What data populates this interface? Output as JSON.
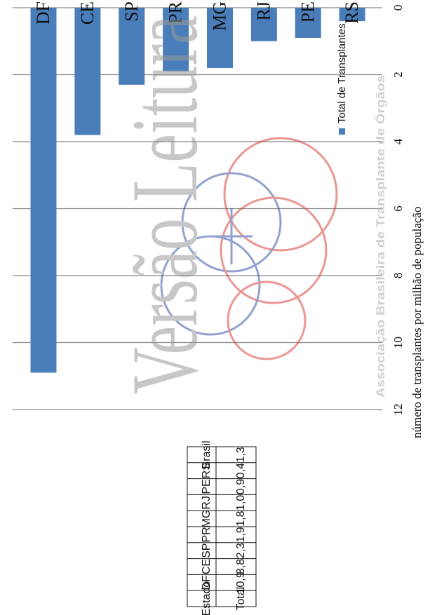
{
  "chart_data": {
    "type": "bar",
    "orientation": "rotated-90-ccw",
    "categories": [
      "DF",
      "CE",
      "SP",
      "PR",
      "MG",
      "RJ",
      "PE",
      "RS"
    ],
    "series": [
      {
        "name": "Total de Transplantes",
        "values": [
          10.9,
          3.8,
          2.3,
          1.9,
          1.8,
          1.0,
          0.9,
          0.4
        ]
      }
    ],
    "ylabel": "número de transplantes por milhão de população",
    "ylim": [
      0,
      12
    ],
    "yticks": [
      0,
      2,
      4,
      6,
      8,
      10,
      12
    ],
    "grid": true,
    "legend_position": "top-right",
    "colors": {
      "bar": "#4a7ebb",
      "grid": "#888888",
      "text": "#111111"
    }
  },
  "table": {
    "headers": [
      "Estado",
      "Total"
    ],
    "rows": [
      [
        "DF",
        "10,9"
      ],
      [
        "CE",
        "3,8"
      ],
      [
        "SP",
        "2,3"
      ],
      [
        "PR",
        "1,9"
      ],
      [
        "MG",
        "1,8"
      ],
      [
        "RJ",
        "1,0"
      ],
      [
        "PE",
        "0,9"
      ],
      [
        "RS",
        "0,4"
      ],
      [
        "Brasil",
        "1,3"
      ]
    ]
  },
  "watermark": {
    "main_text": "Versão Leitura",
    "org_text": "Associação Brasileira de Transplante de Órgãos",
    "colors": {
      "gray": "#9a9a9a",
      "red": "#d9413a",
      "blue": "#3a55a8"
    }
  }
}
